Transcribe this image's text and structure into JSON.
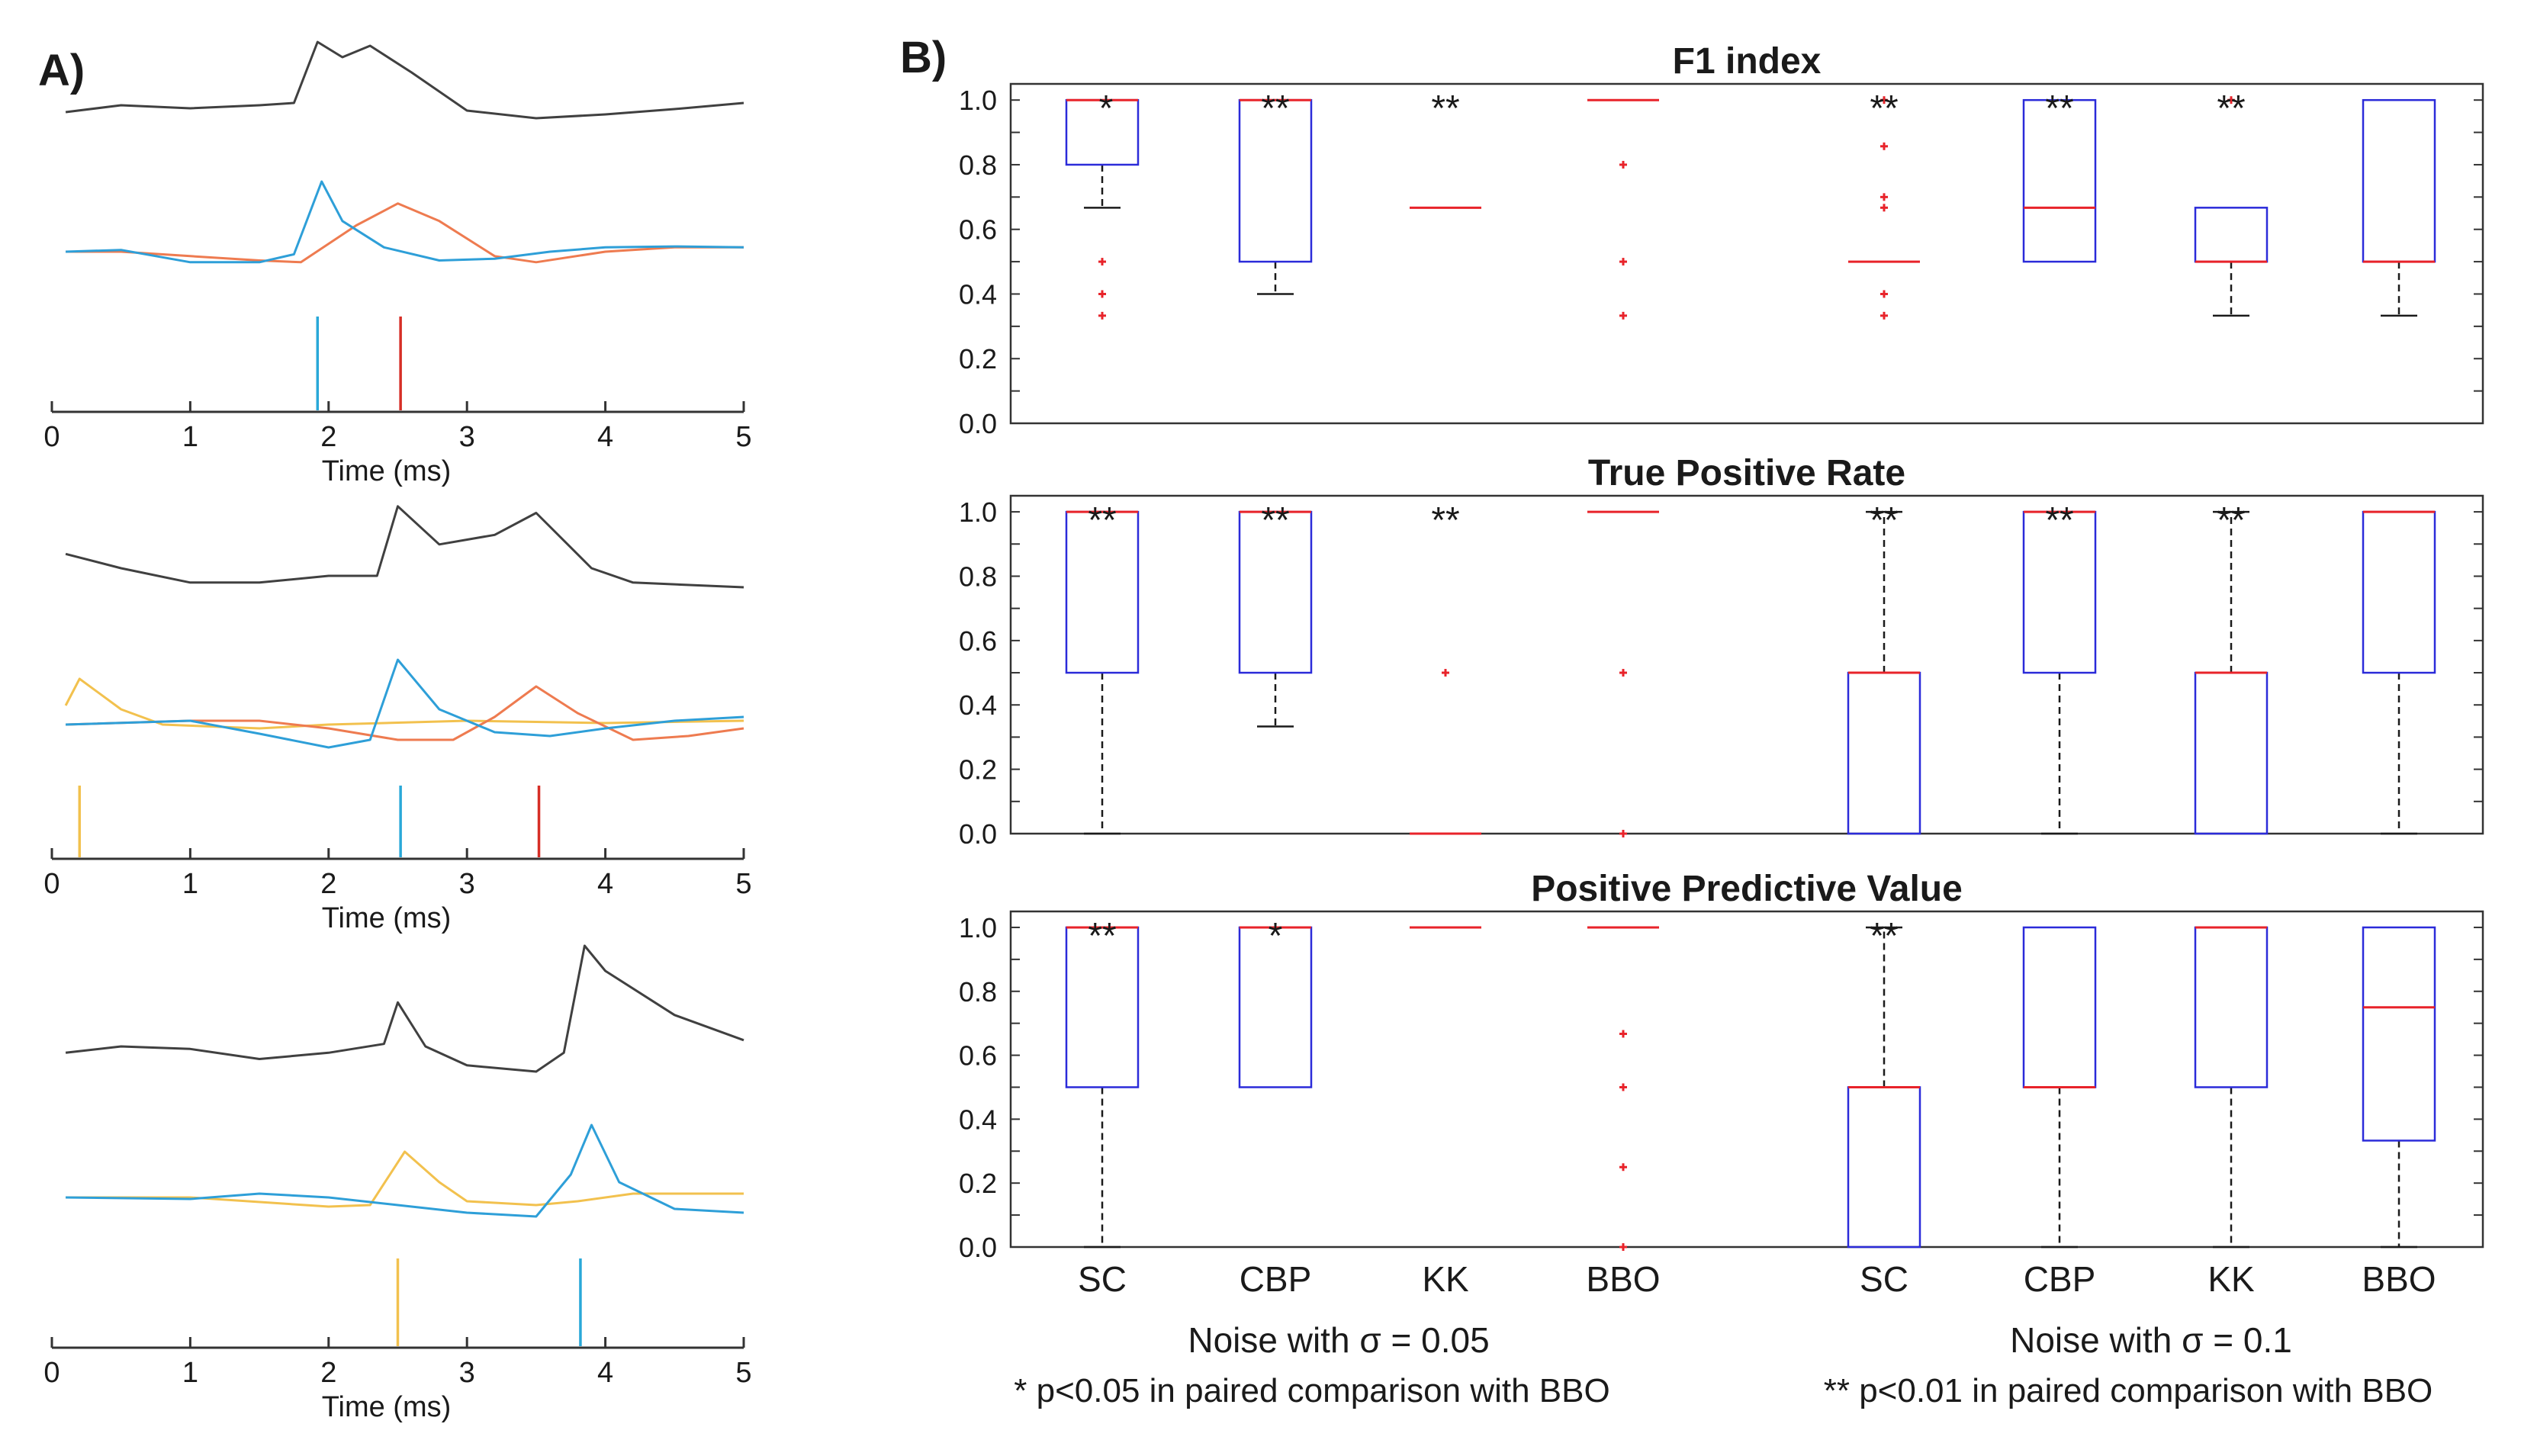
{
  "panel_a_label": "A)",
  "panel_b_label": "B)",
  "chart_data": [
    {
      "type": "line",
      "panel": "A",
      "subplot": 1,
      "xlabel": "Time (ms)",
      "xlim": [
        0,
        5
      ],
      "xticks": [
        "0",
        "1",
        "2",
        "3",
        "4",
        "5"
      ],
      "waveform_black": [
        [
          0.1,
          0.08
        ],
        [
          0.5,
          0.17
        ],
        [
          1.0,
          0.13
        ],
        [
          1.5,
          0.17
        ],
        [
          1.75,
          0.2
        ],
        [
          1.92,
          1.0
        ],
        [
          2.1,
          0.8
        ],
        [
          2.3,
          0.95
        ],
        [
          2.6,
          0.6
        ],
        [
          3.0,
          0.1
        ],
        [
          3.5,
          0.0
        ],
        [
          4.0,
          0.05
        ],
        [
          4.5,
          0.12
        ],
        [
          5.0,
          0.2
        ]
      ],
      "filter_blue": [
        [
          0.1,
          0.0
        ],
        [
          0.5,
          0.02
        ],
        [
          1.0,
          -0.12
        ],
        [
          1.5,
          -0.12
        ],
        [
          1.75,
          -0.03
        ],
        [
          1.95,
          0.8
        ],
        [
          2.1,
          0.35
        ],
        [
          2.4,
          0.05
        ],
        [
          2.8,
          -0.1
        ],
        [
          3.2,
          -0.08
        ],
        [
          3.6,
          0.0
        ],
        [
          4.0,
          0.05
        ],
        [
          4.5,
          0.06
        ],
        [
          5.0,
          0.05
        ]
      ],
      "filter_orange": [
        [
          0.1,
          0.0
        ],
        [
          0.5,
          0.0
        ],
        [
          1.0,
          -0.05
        ],
        [
          1.5,
          -0.1
        ],
        [
          1.8,
          -0.12
        ],
        [
          2.2,
          0.3
        ],
        [
          2.5,
          0.55
        ],
        [
          2.8,
          0.35
        ],
        [
          3.2,
          -0.05
        ],
        [
          3.5,
          -0.12
        ],
        [
          4.0,
          0.0
        ],
        [
          4.5,
          0.05
        ],
        [
          5.0,
          0.05
        ]
      ],
      "spikes": [
        {
          "time": 1.92,
          "color": "#29a8d8"
        },
        {
          "time": 2.52,
          "color": "#d62e26"
        }
      ]
    },
    {
      "type": "line",
      "panel": "A",
      "subplot": 2,
      "xlabel": "Time (ms)",
      "xlim": [
        0,
        5
      ],
      "xticks": [
        "0",
        "1",
        "2",
        "3",
        "4",
        "5"
      ],
      "waveform_black": [
        [
          0.1,
          0.35
        ],
        [
          0.5,
          0.2
        ],
        [
          1.0,
          0.05
        ],
        [
          1.5,
          0.05
        ],
        [
          2.0,
          0.12
        ],
        [
          2.35,
          0.12
        ],
        [
          2.5,
          0.85
        ],
        [
          2.8,
          0.45
        ],
        [
          3.2,
          0.55
        ],
        [
          3.5,
          0.78
        ],
        [
          3.9,
          0.2
        ],
        [
          4.2,
          0.05
        ],
        [
          5.0,
          0.0
        ]
      ],
      "filter_yellow": [
        [
          0.1,
          0.25
        ],
        [
          0.2,
          0.6
        ],
        [
          0.5,
          0.2
        ],
        [
          0.8,
          0.0
        ],
        [
          1.5,
          -0.05
        ],
        [
          2.0,
          0.0
        ],
        [
          3.0,
          0.05
        ],
        [
          4.0,
          0.02
        ],
        [
          5.0,
          0.05
        ]
      ],
      "filter_blue": [
        [
          0.1,
          0.0
        ],
        [
          1.0,
          0.05
        ],
        [
          1.5,
          -0.12
        ],
        [
          2.0,
          -0.3
        ],
        [
          2.3,
          -0.2
        ],
        [
          2.5,
          0.85
        ],
        [
          2.8,
          0.2
        ],
        [
          3.2,
          -0.1
        ],
        [
          3.6,
          -0.15
        ],
        [
          4.0,
          -0.05
        ],
        [
          4.5,
          0.05
        ],
        [
          5.0,
          0.1
        ]
      ],
      "filter_orange": [
        [
          0.1,
          0.0
        ],
        [
          1.0,
          0.05
        ],
        [
          1.5,
          0.05
        ],
        [
          2.0,
          -0.05
        ],
        [
          2.5,
          -0.2
        ],
        [
          2.9,
          -0.2
        ],
        [
          3.2,
          0.1
        ],
        [
          3.5,
          0.5
        ],
        [
          3.8,
          0.15
        ],
        [
          4.2,
          -0.2
        ],
        [
          4.6,
          -0.15
        ],
        [
          5.0,
          -0.05
        ]
      ],
      "spikes": [
        {
          "time": 0.2,
          "color": "#f2c14e"
        },
        {
          "time": 2.52,
          "color": "#29a8d8"
        },
        {
          "time": 3.52,
          "color": "#d62e26"
        }
      ]
    },
    {
      "type": "line",
      "panel": "A",
      "subplot": 3,
      "xlabel": "Time (ms)",
      "xlim": [
        0,
        5
      ],
      "xticks": [
        "0",
        "1",
        "2",
        "3",
        "4",
        "5"
      ],
      "waveform_black": [
        [
          0.1,
          0.15
        ],
        [
          0.5,
          0.2
        ],
        [
          1.0,
          0.18
        ],
        [
          1.5,
          0.1
        ],
        [
          2.0,
          0.15
        ],
        [
          2.4,
          0.22
        ],
        [
          2.5,
          0.55
        ],
        [
          2.7,
          0.2
        ],
        [
          3.0,
          0.05
        ],
        [
          3.5,
          0.0
        ],
        [
          3.7,
          0.15
        ],
        [
          3.85,
          1.0
        ],
        [
          4.0,
          0.8
        ],
        [
          4.5,
          0.45
        ],
        [
          5.0,
          0.25
        ]
      ],
      "filter_yellow": [
        [
          0.1,
          0.0
        ],
        [
          1.0,
          0.0
        ],
        [
          2.0,
          -0.12
        ],
        [
          2.3,
          -0.1
        ],
        [
          2.55,
          0.6
        ],
        [
          2.8,
          0.2
        ],
        [
          3.0,
          -0.05
        ],
        [
          3.5,
          -0.1
        ],
        [
          3.8,
          -0.05
        ],
        [
          4.2,
          0.05
        ],
        [
          5.0,
          0.05
        ]
      ],
      "filter_blue": [
        [
          0.1,
          0.0
        ],
        [
          1.0,
          -0.02
        ],
        [
          1.5,
          0.05
        ],
        [
          2.0,
          0.0
        ],
        [
          2.5,
          -0.1
        ],
        [
          3.0,
          -0.2
        ],
        [
          3.5,
          -0.25
        ],
        [
          3.75,
          0.3
        ],
        [
          3.9,
          0.95
        ],
        [
          4.1,
          0.2
        ],
        [
          4.5,
          -0.15
        ],
        [
          5.0,
          -0.2
        ]
      ],
      "spikes": [
        {
          "time": 2.5,
          "color": "#f2c14e"
        },
        {
          "time": 3.82,
          "color": "#29a8d8"
        }
      ]
    },
    {
      "type": "box",
      "panel": "B",
      "title": "F1 index",
      "ylim": [
        0,
        1.05
      ],
      "yticks": [
        "0.0",
        "0.2",
        "0.4",
        "0.6",
        "0.8",
        "1.0"
      ],
      "categories": [
        "SC",
        "CBP",
        "KK",
        "BBO",
        "SC",
        "CBP",
        "KK",
        "BBO"
      ],
      "groups": [
        "Noise with σ = 0.05",
        "Noise with σ = 0.1"
      ],
      "boxes": [
        {
          "q1": 0.8,
          "median": 1.0,
          "q3": 1.0,
          "wlow": 0.667,
          "whigh": 1.0,
          "outliers": [
            0.5,
            0.4,
            0.333
          ],
          "sig": "*"
        },
        {
          "q1": 0.5,
          "median": 1.0,
          "q3": 1.0,
          "wlow": 0.4,
          "whigh": 1.0,
          "outliers": [],
          "sig": "**"
        },
        {
          "q1": 0.667,
          "median": 0.667,
          "q3": 0.667,
          "wlow": 0.667,
          "whigh": 0.667,
          "outliers": [],
          "sig": "**"
        },
        {
          "q1": 1.0,
          "median": 1.0,
          "q3": 1.0,
          "wlow": 1.0,
          "whigh": 1.0,
          "outliers": [
            0.8,
            0.5,
            0.333
          ],
          "sig": ""
        },
        {
          "q1": 0.5,
          "median": 0.5,
          "q3": 0.5,
          "wlow": 0.5,
          "whigh": 0.5,
          "outliers": [
            1.0,
            0.857,
            0.7,
            0.667,
            0.4,
            0.333
          ],
          "sig": "**"
        },
        {
          "q1": 0.5,
          "median": 0.667,
          "q3": 1.0,
          "wlow": 0.5,
          "whigh": 1.0,
          "outliers": [],
          "sig": "**"
        },
        {
          "q1": 0.5,
          "median": 0.5,
          "q3": 0.667,
          "wlow": 0.333,
          "whigh": 0.667,
          "outliers": [
            1.0
          ],
          "sig": "**"
        },
        {
          "q1": 0.5,
          "median": 0.5,
          "q3": 1.0,
          "wlow": 0.333,
          "whigh": 1.0,
          "outliers": [],
          "sig": ""
        }
      ]
    },
    {
      "type": "box",
      "panel": "B",
      "title": "True Positive Rate",
      "ylim": [
        0,
        1.05
      ],
      "yticks": [
        "0.0",
        "0.2",
        "0.4",
        "0.6",
        "0.8",
        "1.0"
      ],
      "categories": [
        "SC",
        "CBP",
        "KK",
        "BBO",
        "SC",
        "CBP",
        "KK",
        "BBO"
      ],
      "groups": [
        "Noise with σ = 0.05",
        "Noise with σ = 0.1"
      ],
      "boxes": [
        {
          "q1": 0.5,
          "median": 1.0,
          "q3": 1.0,
          "wlow": 0.0,
          "whigh": 1.0,
          "outliers": [],
          "sig": "**"
        },
        {
          "q1": 0.5,
          "median": 1.0,
          "q3": 1.0,
          "wlow": 0.333,
          "whigh": 1.0,
          "outliers": [],
          "sig": "**"
        },
        {
          "q1": 0.0,
          "median": 0.0,
          "q3": 0.0,
          "wlow": 0.0,
          "whigh": 0.0,
          "outliers": [
            0.5
          ],
          "sig": "**"
        },
        {
          "q1": 1.0,
          "median": 1.0,
          "q3": 1.0,
          "wlow": 1.0,
          "whigh": 1.0,
          "outliers": [
            0.5,
            0.0
          ],
          "sig": ""
        },
        {
          "q1": 0.0,
          "median": 0.5,
          "q3": 0.5,
          "wlow": 0.0,
          "whigh": 1.0,
          "outliers": [],
          "sig": "**"
        },
        {
          "q1": 0.5,
          "median": 1.0,
          "q3": 1.0,
          "wlow": 0.0,
          "whigh": 1.0,
          "outliers": [],
          "sig": "**"
        },
        {
          "q1": 0.0,
          "median": 0.5,
          "q3": 0.5,
          "wlow": 0.0,
          "whigh": 1.0,
          "outliers": [],
          "sig": "**"
        },
        {
          "q1": 0.5,
          "median": 1.0,
          "q3": 1.0,
          "wlow": 0.0,
          "whigh": 1.0,
          "outliers": [],
          "sig": ""
        }
      ]
    },
    {
      "type": "box",
      "panel": "B",
      "title": "Positive Predictive Value",
      "ylim": [
        0,
        1.05
      ],
      "yticks": [
        "0.0",
        "0.2",
        "0.4",
        "0.6",
        "0.8",
        "1.0"
      ],
      "categories": [
        "SC",
        "CBP",
        "KK",
        "BBO",
        "SC",
        "CBP",
        "KK",
        "BBO"
      ],
      "groups": [
        "Noise with σ = 0.05",
        "Noise with σ = 0.1"
      ],
      "boxes": [
        {
          "q1": 0.5,
          "median": 1.0,
          "q3": 1.0,
          "wlow": 0.0,
          "whigh": 1.0,
          "outliers": [],
          "sig": "**"
        },
        {
          "q1": 0.5,
          "median": 1.0,
          "q3": 1.0,
          "wlow": 0.5,
          "whigh": 1.0,
          "outliers": [],
          "sig": "*"
        },
        {
          "q1": 1.0,
          "median": 1.0,
          "q3": 1.0,
          "wlow": 1.0,
          "whigh": 1.0,
          "outliers": [],
          "sig": ""
        },
        {
          "q1": 1.0,
          "median": 1.0,
          "q3": 1.0,
          "wlow": 1.0,
          "whigh": 1.0,
          "outliers": [
            0.667,
            0.5,
            0.25,
            0.0
          ],
          "sig": ""
        },
        {
          "q1": 0.0,
          "median": 0.5,
          "q3": 0.5,
          "wlow": 0.0,
          "whigh": 1.0,
          "outliers": [],
          "sig": "**"
        },
        {
          "q1": 0.5,
          "median": 0.5,
          "q3": 1.0,
          "wlow": 0.0,
          "whigh": 1.0,
          "outliers": [],
          "sig": ""
        },
        {
          "q1": 0.5,
          "median": 1.0,
          "q3": 1.0,
          "wlow": 0.0,
          "whigh": 1.0,
          "outliers": [],
          "sig": ""
        },
        {
          "q1": 0.333,
          "median": 0.75,
          "q3": 1.0,
          "wlow": 0.0,
          "whigh": 1.0,
          "outliers": [],
          "sig": ""
        }
      ]
    }
  ],
  "footnote_single": "* p<0.05 in paired comparison with BBO",
  "footnote_double": "** p<0.01 in paired comparison with BBO",
  "colors": {
    "box": "#2b2bd9",
    "median": "#e8232a",
    "outlier": "#e8232a",
    "whisker": "#1a1a1a",
    "black_trace": "#404040",
    "blue": "#2e9fd8",
    "orange": "#ee7b50",
    "yellow": "#f2c14e"
  }
}
